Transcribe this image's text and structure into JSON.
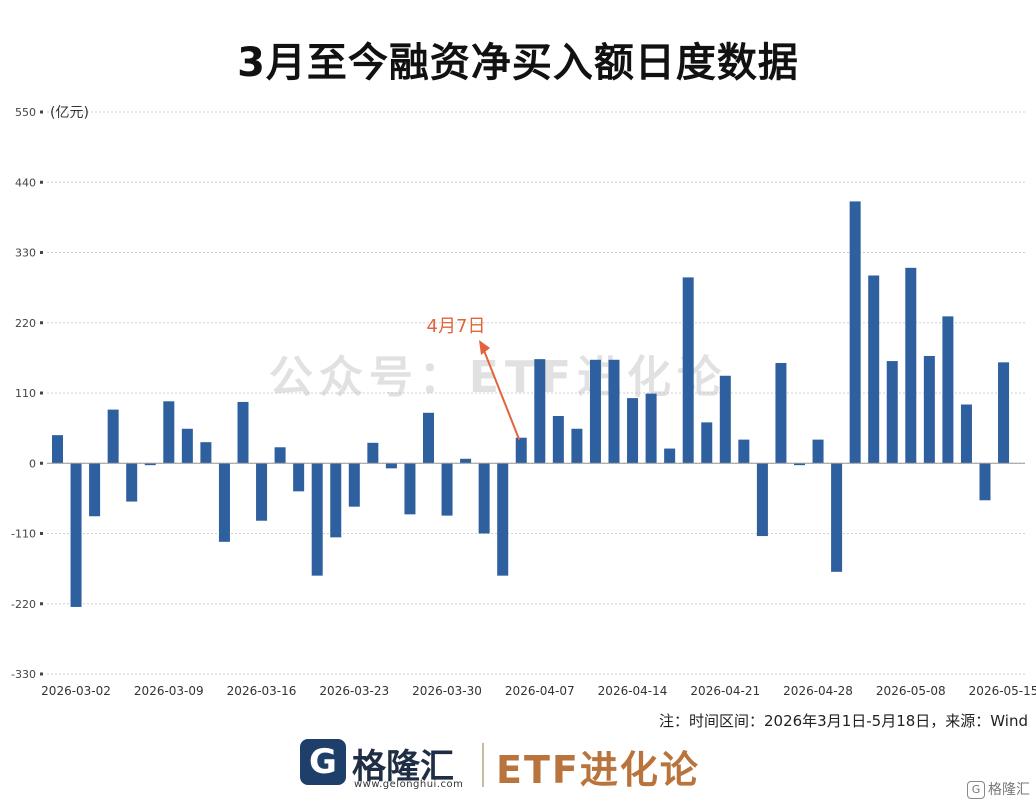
{
  "title": "3月至今融资净买入额日度数据",
  "note": "注：时间区间：2026年3月1日-5月18日，来源：Wind",
  "watermark": "公众号：ETF进化论",
  "logo": {
    "gelonghui_mark": "G",
    "gelonghui_name": "格隆汇",
    "gelonghui_url": "www.gelonghui.com",
    "etf_brand": "ETF进化论",
    "corner_mark": "G",
    "corner_text": "格隆汇"
  },
  "colors": {
    "bar": "#2e5f9e",
    "annotation": "#e2643b",
    "title": "#111111"
  },
  "chart_data": {
    "type": "bar",
    "unit": "(亿元)",
    "ylim": [
      -330,
      550
    ],
    "yticks": [
      550,
      440,
      330,
      220,
      110,
      0,
      -110,
      -220,
      -330
    ],
    "grid": true,
    "xtick_labels": [
      "2026-03-02",
      "2026-03-09",
      "2026-03-16",
      "2026-03-23",
      "2026-03-30",
      "2026-04-07",
      "2026-04-14",
      "2026-04-21",
      "2026-04-28",
      "2026-05-08",
      "2026-05-15"
    ],
    "xtick_positions": [
      1,
      6,
      11,
      16,
      21,
      26,
      31,
      36,
      41,
      46,
      51
    ],
    "values": [
      44,
      -225,
      -83,
      84,
      -60,
      -3,
      97,
      54,
      33,
      -123,
      96,
      -90,
      25,
      -44,
      -176,
      -116,
      -68,
      32,
      -8,
      -80,
      79,
      -82,
      7,
      -110,
      -176,
      40,
      163,
      74,
      54,
      162,
      162,
      102,
      109,
      23,
      291,
      64,
      137,
      37,
      -114,
      157,
      -3,
      37,
      -170,
      410,
      294,
      160,
      306,
      168,
      230,
      92,
      -58,
      158
    ],
    "annotation": {
      "text": "4月7日",
      "bar_index": 25
    }
  }
}
